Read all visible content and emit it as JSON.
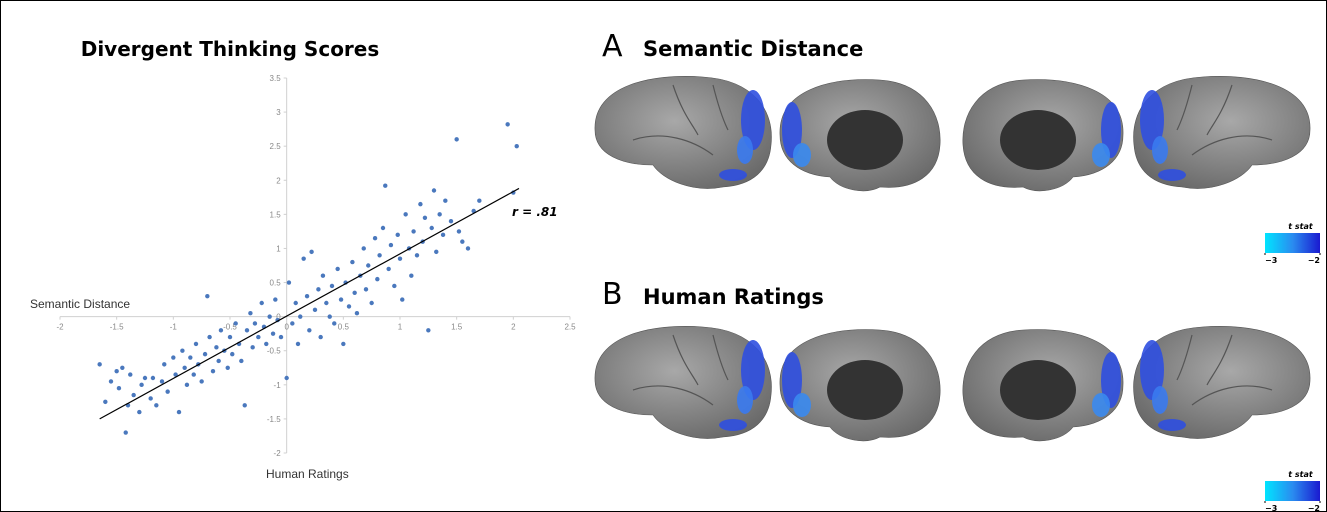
{
  "chart_data": {
    "type": "scatter",
    "title": "Divergent Thinking Scores",
    "x_label": "Semantic Distance",
    "y_label": "Human Ratings",
    "annotation": "r = .81",
    "color": "#4a78bd",
    "trendline_color": "#000000",
    "xlim": [
      -2,
      2.5
    ],
    "ylim": [
      -2,
      3.5
    ],
    "xticks": [
      -2,
      -1.5,
      -1,
      -0.5,
      0,
      0.5,
      1,
      1.5,
      2,
      2.5
    ],
    "yticks": [
      -2,
      -1.5,
      -1,
      -0.5,
      0,
      0.5,
      1,
      1.5,
      2,
      2.5,
      3,
      3.5
    ],
    "x": [
      -1.65,
      -1.6,
      -1.55,
      -1.5,
      -1.48,
      -1.45,
      -1.42,
      -1.4,
      -1.38,
      -1.35,
      -1.3,
      -1.28,
      -1.25,
      -1.2,
      -1.18,
      -1.15,
      -1.1,
      -1.08,
      -1.05,
      -1.0,
      -0.98,
      -0.95,
      -0.92,
      -0.9,
      -0.88,
      -0.85,
      -0.82,
      -0.8,
      -0.78,
      -0.75,
      -0.72,
      -0.7,
      -0.68,
      -0.65,
      -0.62,
      -0.6,
      -0.58,
      -0.55,
      -0.52,
      -0.5,
      -0.48,
      -0.45,
      -0.42,
      -0.4,
      -0.37,
      -0.35,
      -0.32,
      -0.3,
      -0.28,
      -0.25,
      -0.22,
      -0.2,
      -0.18,
      -0.15,
      -0.12,
      -0.1,
      -0.08,
      -0.05,
      0.0,
      0.02,
      0.05,
      0.08,
      0.1,
      0.12,
      0.15,
      0.18,
      0.2,
      0.22,
      0.25,
      0.28,
      0.3,
      0.32,
      0.35,
      0.38,
      0.4,
      0.42,
      0.45,
      0.48,
      0.5,
      0.52,
      0.55,
      0.58,
      0.6,
      0.62,
      0.65,
      0.68,
      0.7,
      0.72,
      0.75,
      0.78,
      0.8,
      0.82,
      0.85,
      0.87,
      0.9,
      0.92,
      0.95,
      0.98,
      1.0,
      1.02,
      1.05,
      1.08,
      1.1,
      1.12,
      1.15,
      1.18,
      1.2,
      1.22,
      1.25,
      1.28,
      1.3,
      1.32,
      1.35,
      1.38,
      1.4,
      1.45,
      1.5,
      1.52,
      1.55,
      1.6,
      1.65,
      1.7,
      1.95,
      2.0,
      2.03
    ],
    "y": [
      -0.7,
      -1.25,
      -0.95,
      -0.8,
      -1.05,
      -0.75,
      -1.7,
      -1.3,
      -0.85,
      -1.15,
      -1.4,
      -1.0,
      -0.9,
      -1.2,
      -0.9,
      -1.3,
      -0.95,
      -0.7,
      -1.1,
      -0.6,
      -0.85,
      -1.4,
      -0.5,
      -0.75,
      -1.0,
      -0.6,
      -0.85,
      -0.4,
      -0.7,
      -0.95,
      -0.55,
      0.3,
      -0.3,
      -0.8,
      -0.45,
      -0.65,
      -0.2,
      -0.5,
      -0.75,
      -0.3,
      -0.55,
      -0.1,
      -0.4,
      -0.65,
      -1.3,
      -0.2,
      0.05,
      -0.45,
      -0.1,
      -0.3,
      0.2,
      -0.15,
      -0.4,
      0.0,
      -0.25,
      0.25,
      -0.05,
      -0.3,
      -0.9,
      0.5,
      -0.1,
      0.2,
      -0.4,
      0.0,
      0.85,
      0.3,
      -0.2,
      0.95,
      0.1,
      0.4,
      -0.3,
      0.6,
      0.2,
      0.0,
      0.45,
      -0.1,
      0.7,
      0.25,
      -0.4,
      0.5,
      0.15,
      0.8,
      0.35,
      0.05,
      0.6,
      1.0,
      0.4,
      0.75,
      0.2,
      1.15,
      0.55,
      0.9,
      1.3,
      1.92,
      0.7,
      1.05,
      0.45,
      1.2,
      0.85,
      0.25,
      1.5,
      1.0,
      0.6,
      1.25,
      0.9,
      1.65,
      1.1,
      1.45,
      -0.2,
      1.3,
      1.85,
      0.95,
      1.5,
      1.2,
      1.7,
      1.4,
      2.6,
      1.25,
      1.1,
      1.0,
      1.55,
      1.7,
      2.82,
      1.82,
      2.5
    ],
    "trendline": {
      "x": [
        -1.65,
        2.05
      ],
      "y": [
        -1.5,
        1.88
      ]
    }
  },
  "panels": [
    {
      "letter": "A",
      "title": "Semantic Distance",
      "colorbar": {
        "label": "t stat",
        "lim": [
          -3,
          -2
        ],
        "ticks": [
          {
            "value": -3,
            "label": "−3"
          },
          {
            "value": -2,
            "label": "−2"
          }
        ]
      }
    },
    {
      "letter": "B",
      "title": "Human Ratings",
      "colorbar": {
        "label": "t stat",
        "lim": [
          -3,
          -2
        ],
        "ticks": [
          {
            "value": -3,
            "label": "−3"
          },
          {
            "value": -2,
            "label": "−2"
          }
        ]
      }
    }
  ]
}
